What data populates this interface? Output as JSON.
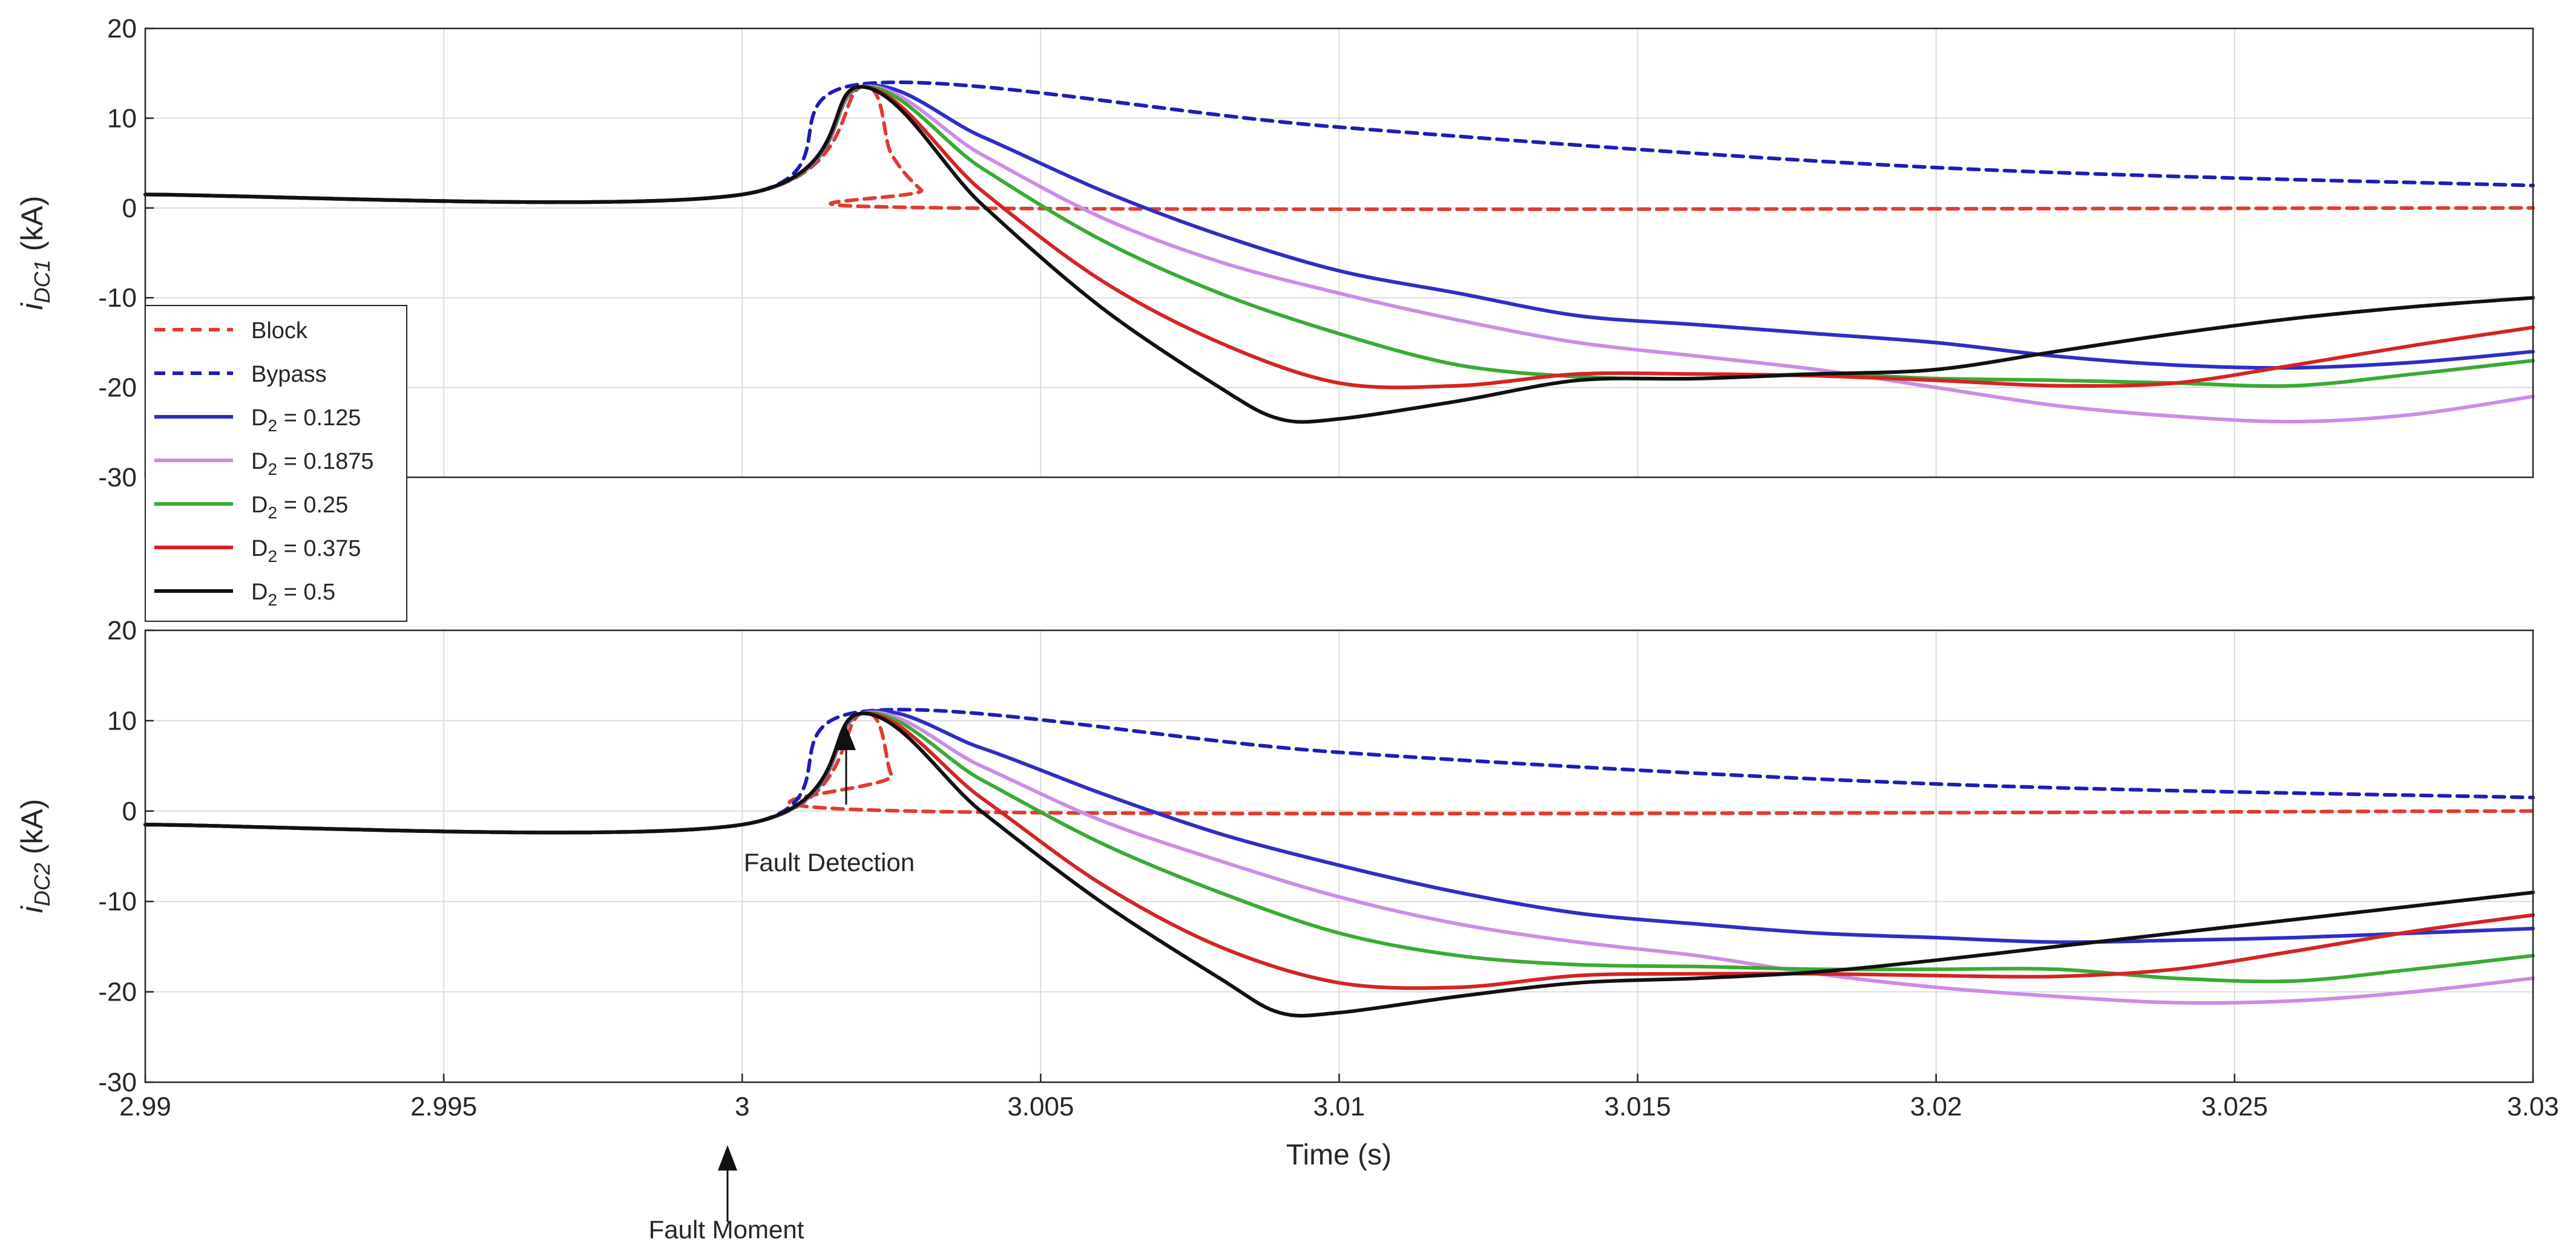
{
  "chart_data": [
    {
      "type": "line",
      "id": "top",
      "ylabel_main": "i",
      "ylabel_sub": "DC1",
      "ylabel_unit": " (kA)",
      "xlim": [
        2.99,
        3.03
      ],
      "ylim": [
        -30,
        20
      ],
      "yticks": [
        20,
        10,
        0,
        -10,
        -20,
        -30
      ],
      "ytick_labels": [
        "20",
        "10",
        "0",
        "-10",
        "-20",
        "-30"
      ],
      "grid": true,
      "legend_position": "lower-left",
      "series": [
        {
          "name": "Block",
          "color": "#e03c31",
          "dash": true,
          "x": [
            2.99,
            3.0,
            3.002,
            3.0025,
            3.003,
            3.0035,
            3.03
          ],
          "y": [
            1.5,
            1.5,
            13.5,
            6,
            2,
            0,
            0
          ]
        },
        {
          "name": "Bypass",
          "color": "#1d1db8",
          "dash": true,
          "x": [
            2.99,
            3.0,
            3.002,
            3.01,
            3.02,
            3.03
          ],
          "y": [
            1.5,
            1.5,
            13.8,
            9,
            4.5,
            2.5
          ]
        },
        {
          "name": "D2 = 0.125",
          "color": "#2e2ec4",
          "dash": false,
          "x": [
            2.99,
            3.0,
            3.002,
            3.004,
            3.006,
            3.008,
            3.01,
            3.012,
            3.014,
            3.016,
            3.018,
            3.02,
            3.022,
            3.024,
            3.026,
            3.028,
            3.03
          ],
          "y": [
            1.5,
            1.5,
            13.5,
            8,
            2,
            -3,
            -7,
            -9.5,
            -12,
            -13,
            -14,
            -15,
            -16.5,
            -17.5,
            -17.8,
            -17.2,
            -16
          ]
        },
        {
          "name": "D2 = 0.1875",
          "color": "#cc8ce6",
          "dash": false,
          "x": [
            2.99,
            3.0,
            3.002,
            3.004,
            3.006,
            3.008,
            3.01,
            3.012,
            3.014,
            3.016,
            3.018,
            3.02,
            3.022,
            3.024,
            3.026,
            3.028,
            3.03
          ],
          "y": [
            1.5,
            1.5,
            13.5,
            6,
            -1,
            -6,
            -9.5,
            -12.5,
            -15,
            -16.5,
            -18,
            -20,
            -22,
            -23.2,
            -23.8,
            -23,
            -21
          ]
        },
        {
          "name": "D2 = 0.25",
          "color": "#3aaa35",
          "dash": false,
          "x": [
            2.99,
            3.0,
            3.002,
            3.004,
            3.006,
            3.008,
            3.01,
            3.012,
            3.014,
            3.016,
            3.018,
            3.02,
            3.022,
            3.024,
            3.026,
            3.028,
            3.03
          ],
          "y": [
            1.5,
            1.5,
            13.5,
            4.5,
            -3.5,
            -9.5,
            -14,
            -17.5,
            -18.8,
            -19,
            -18.5,
            -19,
            -19.2,
            -19.5,
            -19.8,
            -18.5,
            -17
          ]
        },
        {
          "name": "D2 = 0.375",
          "color": "#d42424",
          "dash": false,
          "x": [
            2.99,
            3.0,
            3.002,
            3.004,
            3.006,
            3.008,
            3.01,
            3.012,
            3.014,
            3.016,
            3.018,
            3.02,
            3.022,
            3.024,
            3.026,
            3.028,
            3.03
          ],
          "y": [
            1.5,
            1.5,
            13.5,
            2,
            -8,
            -15,
            -19.5,
            -19.8,
            -18.5,
            -18.5,
            -18.7,
            -19.2,
            -19.8,
            -19.5,
            -17.5,
            -15.3,
            -13.3
          ]
        },
        {
          "name": "D2 = 0.5",
          "color": "#111111",
          "dash": false,
          "x": [
            2.99,
            3.0,
            3.002,
            3.004,
            3.006,
            3.008,
            3.009,
            3.01,
            3.012,
            3.014,
            3.016,
            3.018,
            3.02,
            3.022,
            3.024,
            3.026,
            3.028,
            3.03
          ],
          "y": [
            1.5,
            1.5,
            13.5,
            0.5,
            -11,
            -20,
            -23.5,
            -23.5,
            -21.5,
            -19.2,
            -19,
            -18.5,
            -18,
            -16,
            -14,
            -12.3,
            -11,
            -10
          ]
        }
      ]
    },
    {
      "type": "line",
      "id": "bottom",
      "ylabel_main": "i",
      "ylabel_sub": "DC2",
      "ylabel_unit": " (kA)",
      "xlabel": "Time (s)",
      "xlim": [
        2.99,
        3.03
      ],
      "ylim": [
        -30,
        20
      ],
      "yticks": [
        20,
        10,
        0,
        -10,
        -20,
        -30
      ],
      "ytick_labels": [
        "20",
        "10",
        "0",
        "-10",
        "-20",
        "-30"
      ],
      "xticks": [
        2.99,
        2.995,
        3.0,
        3.005,
        3.01,
        3.015,
        3.02,
        3.025,
        3.03
      ],
      "xtick_labels": [
        "2.99",
        "2.995",
        "3",
        "3.005",
        "3.01",
        "3.015",
        "3.02",
        "3.025",
        "3.03"
      ],
      "grid": true,
      "series": [
        {
          "name": "Block",
          "color": "#e03c31",
          "dash": true,
          "x": [
            2.99,
            3.0,
            3.002,
            3.0025,
            3.0028,
            3.03
          ],
          "y": [
            -1.5,
            -1.5,
            10.8,
            4,
            0,
            0
          ]
        },
        {
          "name": "Bypass",
          "color": "#1d1db8",
          "dash": true,
          "x": [
            2.99,
            3.0,
            3.002,
            3.01,
            3.02,
            3.03
          ],
          "y": [
            -1.5,
            -1.5,
            11,
            6.5,
            3,
            1.5
          ]
        },
        {
          "name": "D2 = 0.125",
          "color": "#2e2ec4",
          "dash": false,
          "x": [
            2.99,
            3.0,
            3.002,
            3.004,
            3.006,
            3.008,
            3.01,
            3.012,
            3.014,
            3.016,
            3.018,
            3.02,
            3.022,
            3.024,
            3.026,
            3.028,
            3.03
          ],
          "y": [
            -1.5,
            -1.5,
            10.8,
            7,
            2,
            -2.5,
            -6,
            -9,
            -11.3,
            -12.5,
            -13.5,
            -14,
            -14.5,
            -14.3,
            -14,
            -13.5,
            -13
          ]
        },
        {
          "name": "D2 = 0.1875",
          "color": "#cc8ce6",
          "dash": false,
          "x": [
            2.99,
            3.0,
            3.002,
            3.004,
            3.006,
            3.008,
            3.01,
            3.012,
            3.014,
            3.016,
            3.018,
            3.02,
            3.022,
            3.024,
            3.026,
            3.028,
            3.03
          ],
          "y": [
            -1.5,
            -1.5,
            10.8,
            5,
            -1,
            -5.5,
            -9.5,
            -12.5,
            -14.5,
            -16,
            -18,
            -19.5,
            -20.5,
            -21.2,
            -21,
            -20,
            -18.5
          ]
        },
        {
          "name": "D2 = 0.25",
          "color": "#3aaa35",
          "dash": false,
          "x": [
            2.99,
            3.0,
            3.002,
            3.004,
            3.006,
            3.008,
            3.01,
            3.012,
            3.014,
            3.016,
            3.018,
            3.02,
            3.022,
            3.024,
            3.026,
            3.028,
            3.03
          ],
          "y": [
            -1.5,
            -1.5,
            10.8,
            3.5,
            -3.5,
            -9,
            -13.5,
            -16,
            -17,
            -17.2,
            -17.5,
            -17.5,
            -17.5,
            -18.5,
            -18.8,
            -17.5,
            -16
          ]
        },
        {
          "name": "D2 = 0.375",
          "color": "#d42424",
          "dash": false,
          "x": [
            2.99,
            3.0,
            3.002,
            3.004,
            3.006,
            3.008,
            3.01,
            3.012,
            3.014,
            3.016,
            3.018,
            3.02,
            3.022,
            3.024,
            3.026,
            3.028,
            3.03
          ],
          "y": [
            -1.5,
            -1.5,
            10.8,
            1.5,
            -8,
            -15,
            -19,
            -19.5,
            -18.2,
            -18,
            -18,
            -18.2,
            -18.3,
            -17.5,
            -15.5,
            -13.3,
            -11.5
          ]
        },
        {
          "name": "D2 = 0.5",
          "color": "#111111",
          "dash": false,
          "x": [
            2.99,
            3.0,
            3.002,
            3.004,
            3.006,
            3.008,
            3.009,
            3.01,
            3.012,
            3.014,
            3.016,
            3.018,
            3.02,
            3.022,
            3.024,
            3.026,
            3.028,
            3.03
          ],
          "y": [
            -1.5,
            -1.5,
            10.8,
            0,
            -10,
            -18.5,
            -22.3,
            -22.3,
            -20.5,
            -19,
            -18.5,
            -17.8,
            -16.5,
            -15,
            -13.5,
            -12,
            -10.5,
            -9
          ]
        }
      ]
    }
  ],
  "legend": [
    {
      "main": "Block",
      "sub": "",
      "tail": ""
    },
    {
      "main": "Bypass",
      "sub": "",
      "tail": ""
    },
    {
      "main": "D",
      "sub": "2",
      "tail": " = 0.125"
    },
    {
      "main": "D",
      "sub": "2",
      "tail": " = 0.1875"
    },
    {
      "main": "D",
      "sub": "2",
      "tail": " = 0.25"
    },
    {
      "main": "D",
      "sub": "2",
      "tail": " = 0.375"
    },
    {
      "main": "D",
      "sub": "2",
      "tail": " = 0.5"
    }
  ],
  "annotations": {
    "fault_detection": {
      "text": "Fault Detection",
      "x": 3.002,
      "y": 10.8
    },
    "fault_moment": {
      "text": "Fault Moment",
      "x": 3.0
    }
  }
}
